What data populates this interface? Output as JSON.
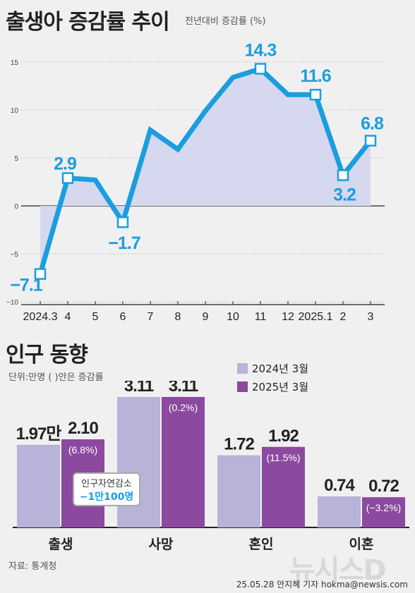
{
  "line_title": "출생아 증감률 추이",
  "line_subtitle": "전년대비 증감률 (%)",
  "bar_title": "인구 동향",
  "bar_unit": "단위:만명 ( )안은  증감률",
  "legend": [
    {
      "label": "2024년 3월",
      "color": "#b8b3d8"
    },
    {
      "label": "2025년 3월",
      "color": "#8b4a9f"
    }
  ],
  "callout": {
    "line1": "인구자연감소",
    "line2": "−1만100명"
  },
  "source": "자료: 통계청",
  "credit": "25.05.28 안지혜 기자 hokma@newsis.com",
  "watermark": "뉴시스D",
  "colors": {
    "line": "#1a9ee0",
    "area": "#d5d8ee",
    "bar2024": "#b8b3d8",
    "bar2025": "#8b4a9f",
    "label_blue": "#1a9ee0"
  },
  "chart_data": [
    {
      "type": "line",
      "title": "출생아 증감률 추이",
      "subtitle": "전년대비 증감률 (%)",
      "x": [
        "2024.3",
        "4",
        "5",
        "6",
        "7",
        "8",
        "9",
        "10",
        "11",
        "12",
        "2025.1",
        "2",
        "3"
      ],
      "values": [
        -7.1,
        2.9,
        2.7,
        -1.7,
        7.9,
        5.9,
        9.9,
        13.4,
        14.3,
        11.6,
        11.6,
        3.2,
        6.8
      ],
      "labeled_points": [
        {
          "index": 0,
          "label": "−7.1"
        },
        {
          "index": 1,
          "label": "2.9"
        },
        {
          "index": 3,
          "label": "−1.7"
        },
        {
          "index": 8,
          "label": "14.3"
        },
        {
          "index": 10,
          "label": "11.6"
        },
        {
          "index": 11,
          "label": "3.2"
        },
        {
          "index": 12,
          "label": "6.8"
        }
      ],
      "yticks": [
        "15",
        "10",
        "5",
        "0",
        "−5",
        "−10"
      ],
      "ylim": [
        -10,
        15
      ],
      "grid": true
    },
    {
      "type": "bar",
      "title": "인구 동향",
      "categories": [
        "출생",
        "사망",
        "혼인",
        "이혼"
      ],
      "series": [
        {
          "name": "2024년 3월",
          "values": [
            1.97,
            3.11,
            1.72,
            0.74
          ],
          "labels": [
            "1.97만",
            "3.11",
            "1.72",
            "0.74"
          ]
        },
        {
          "name": "2025년 3월",
          "values": [
            2.1,
            3.11,
            1.92,
            0.72
          ],
          "labels": [
            "2.10",
            "3.11",
            "1.92",
            "0.72"
          ],
          "change_labels": [
            "(6.8%)",
            "(0.2%)",
            "(11.5%)",
            "(−3.2%)"
          ]
        }
      ],
      "legend": "top-right"
    }
  ]
}
